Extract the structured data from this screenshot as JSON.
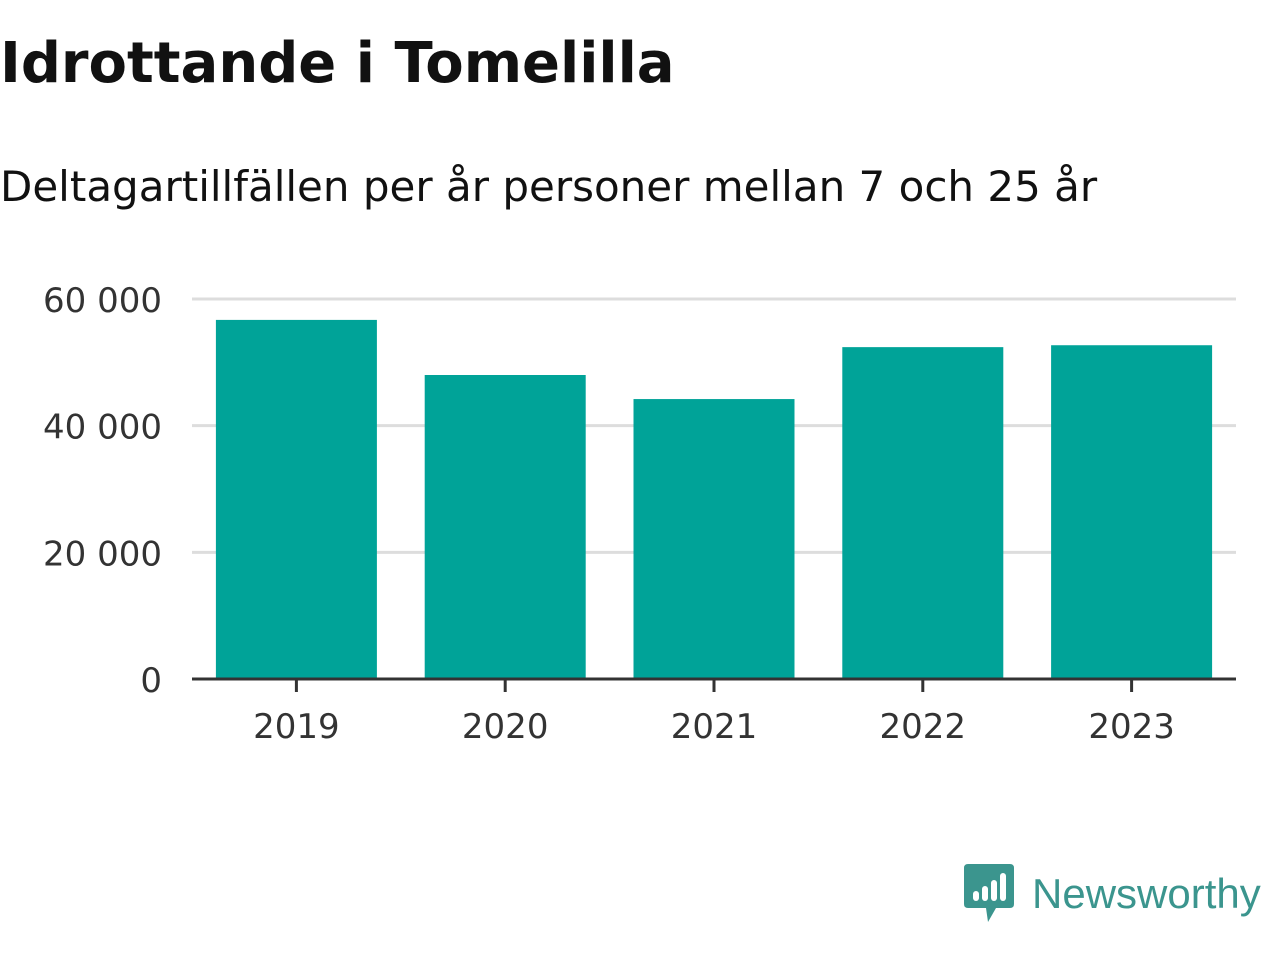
{
  "title": "Idrottande i Tomelilla",
  "subtitle": "Deltagartillfällen per år personer mellan 7 och 25 år",
  "logo": {
    "text": "Newsworthy",
    "icon": "newsworthy-logo-icon"
  },
  "colors": {
    "bar": "#00a398",
    "grid": "#dddddd",
    "axis": "#333333",
    "tick_text": "#333333",
    "logo": "#3b958e"
  },
  "chart_data": {
    "type": "bar",
    "categories": [
      "2019",
      "2020",
      "2021",
      "2022",
      "2023"
    ],
    "values": [
      56700,
      48000,
      44200,
      52400,
      52700
    ],
    "ylim": [
      0,
      60000
    ],
    "yticks": [
      0,
      20000,
      40000,
      60000
    ],
    "ytick_labels": [
      "0",
      "20 000",
      "40 000",
      "60 000"
    ],
    "grid": true,
    "xlabel": "",
    "ylabel": ""
  }
}
